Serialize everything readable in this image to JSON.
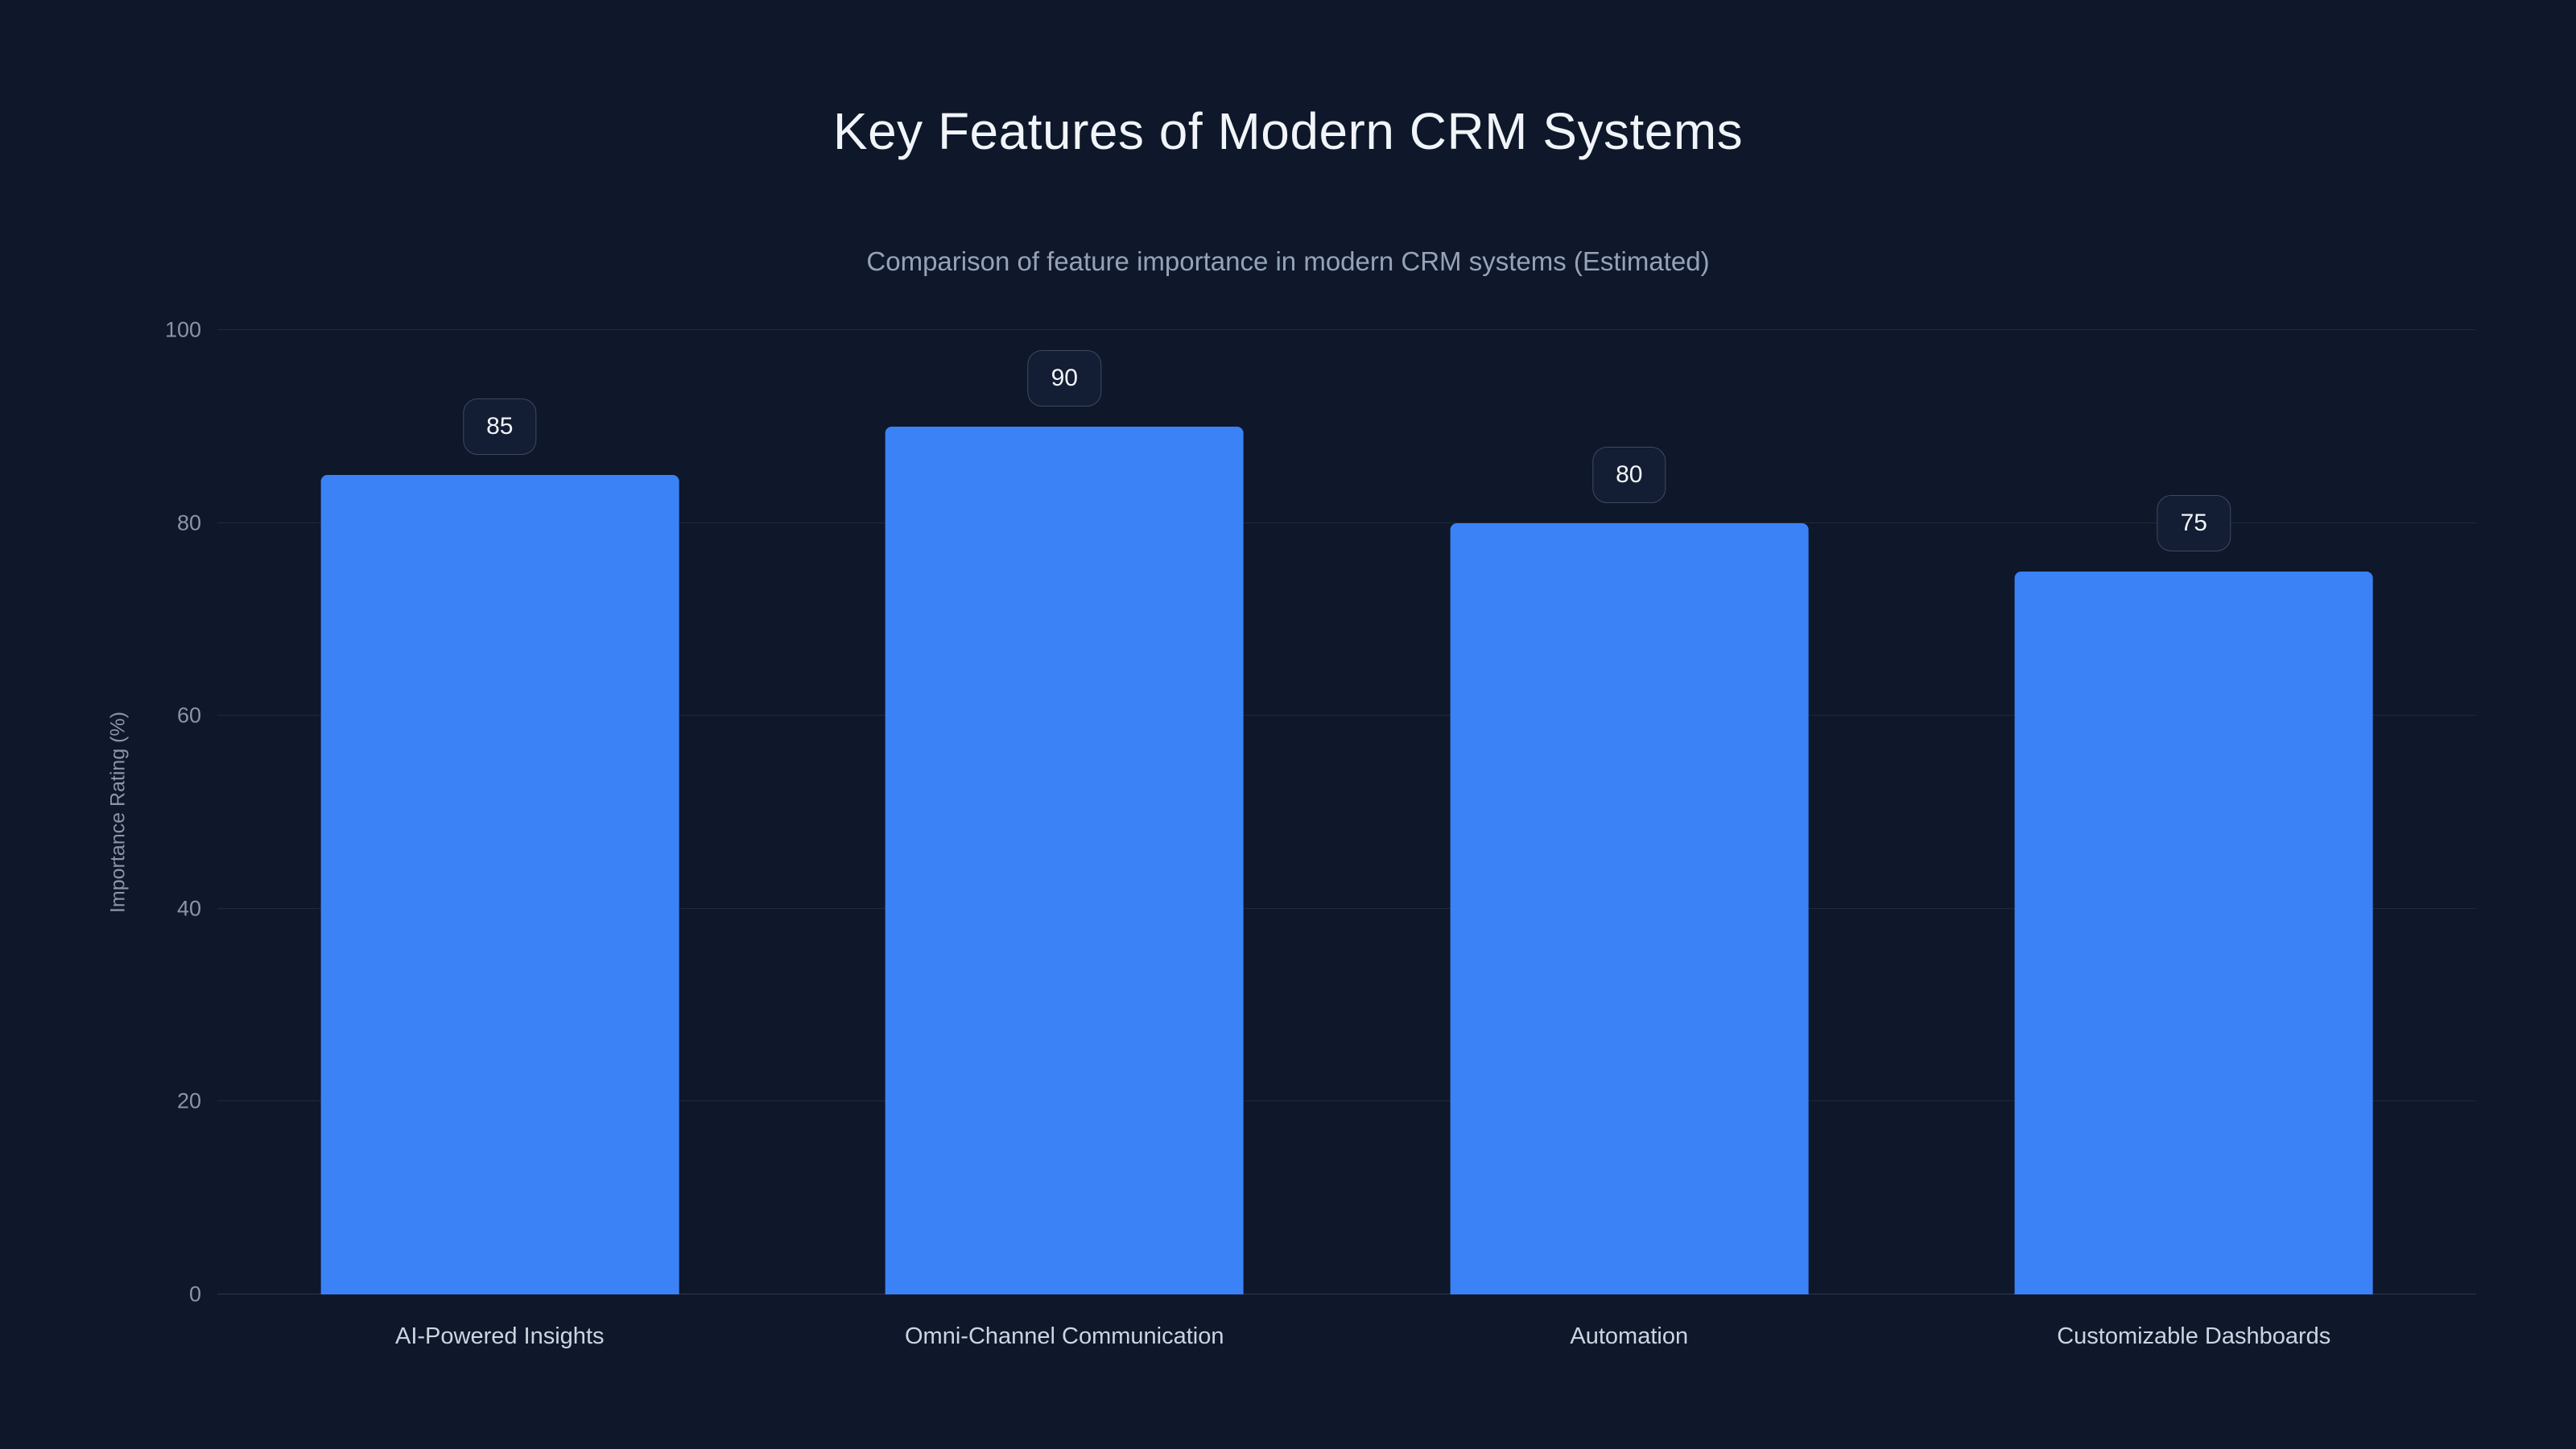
{
  "page": {
    "title": "Key Features of Modern CRM Systems",
    "subtitle": "Comparison of feature importance in modern CRM systems (Estimated)"
  },
  "chart_data": {
    "type": "bar",
    "title": "Key Features of Modern CRM Systems",
    "subtitle": "Comparison of feature importance in modern CRM systems (Estimated)",
    "categories": [
      "AI-Powered Insights",
      "Omni-Channel Communication",
      "Automation",
      "Customizable Dashboards"
    ],
    "values": [
      85,
      90,
      80,
      75
    ],
    "value_labels": [
      85,
      90,
      80,
      75
    ],
    "xlabel": "",
    "ylabel": "Importance Rating (%)",
    "ylim": [
      0,
      100
    ],
    "yticks": [
      0,
      20,
      40,
      60,
      80,
      100
    ],
    "grid": true,
    "legend": false
  },
  "colors": {
    "background": "#0f172a",
    "bar": "#3b82f6",
    "title_text": "#f1f5f9",
    "subtitle_text": "#94a3b8",
    "axis_text": "#8b95a7",
    "category_text": "#cbd5e1",
    "gridline": "rgba(148,163,184,0.13)",
    "badge_border": "#3e4a61",
    "badge_background": "#131d33"
  }
}
